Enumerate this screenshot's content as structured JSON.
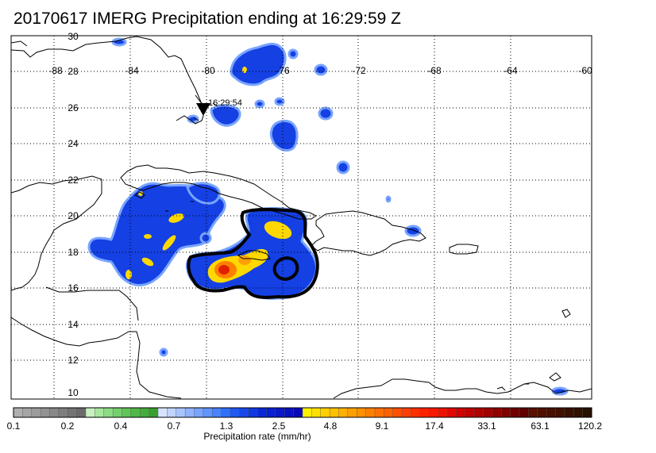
{
  "title": "20170617 IMERG Precipitation ending at 16:29:59 Z",
  "map": {
    "lon_labels": [
      "-88",
      "-84",
      "-80",
      "-76",
      "-72",
      "-68",
      "-64",
      "-60"
    ],
    "lat_labels": [
      "30",
      "28",
      "26",
      "24",
      "22",
      "20",
      "18",
      "16",
      "14",
      "12",
      "10"
    ],
    "lon_range": [
      -90,
      -60
    ],
    "lat_range": [
      9.5,
      30
    ],
    "overpass_label": "16:29:54",
    "overpass_location": {
      "lon": -80,
      "lat": 25.7
    }
  },
  "colorbar": {
    "title": "Precipitation rate (mm/hr)",
    "tick_labels": [
      "0.1",
      "0.2",
      "0.4",
      "0.7",
      "1.3",
      "2.5",
      "4.8",
      "9.1",
      "17.4",
      "33.1",
      "63.1",
      "120.2"
    ],
    "colors": [
      "#b0b0b0",
      "#a6a6a6",
      "#9c9c9c",
      "#929292",
      "#888888",
      "#7e7e7e",
      "#747474",
      "#6a6a6a",
      "#c8f0c0",
      "#a8e6a0",
      "#8cdc84",
      "#74d06c",
      "#60c458",
      "#50b848",
      "#44ac3c",
      "#389e30",
      "#d8e4ff",
      "#c0d4ff",
      "#a8c4ff",
      "#90b4ff",
      "#78a4ff",
      "#6094ff",
      "#4884ff",
      "#3070f8",
      "#2058f0",
      "#1848e8",
      "#1038e0",
      "#0828d8",
      "#0820d0",
      "#0818c8",
      "#0810c0",
      "#0808b8",
      "#fff000",
      "#ffe000",
      "#ffd000",
      "#ffc000",
      "#ffb000",
      "#ffa000",
      "#ff9000",
      "#ff8000",
      "#ff7000",
      "#ff6000",
      "#ff5000",
      "#ff4000",
      "#ff3000",
      "#ff2000",
      "#f81800",
      "#f01000",
      "#e00800",
      "#d00000",
      "#c00000",
      "#b00000",
      "#a00000",
      "#900000",
      "#800000",
      "#700000",
      "#600000",
      "#581000",
      "#501000",
      "#481000",
      "#401000",
      "#381000",
      "#301000",
      "#281000"
    ]
  },
  "legend_note": ""
}
